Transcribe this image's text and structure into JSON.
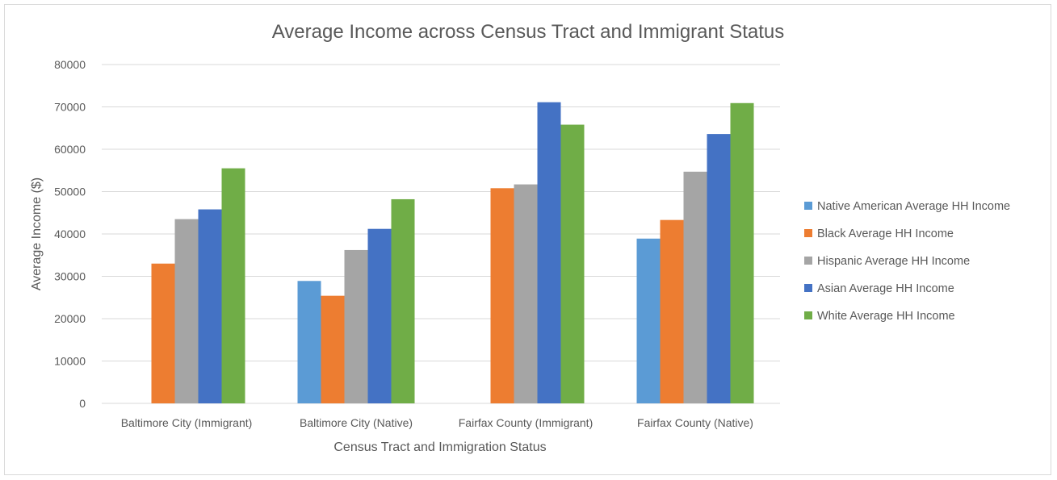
{
  "chart_data": {
    "type": "bar",
    "title": "Average Income across Census Tract and Immigrant Status",
    "xlabel": "Census Tract and Immigration Status",
    "ylabel": "Average Income ($)",
    "ylim": [
      0,
      80000
    ],
    "yticks": [
      0,
      10000,
      20000,
      30000,
      40000,
      50000,
      60000,
      70000,
      80000
    ],
    "grid": true,
    "legend_position": "right",
    "categories": [
      "Baltimore City (Immigrant)",
      "Baltimore City (Native)",
      "Fairfax County (Immigrant)",
      "Fairfax County (Native)"
    ],
    "series": [
      {
        "name": "Native American Average HH Income",
        "color": "#5b9bd5",
        "values": [
          null,
          28900,
          null,
          38900
        ]
      },
      {
        "name": "Black Average HH Income",
        "color": "#ed7d31",
        "values": [
          33000,
          25400,
          50800,
          43300
        ]
      },
      {
        "name": "Hispanic Average HH Income",
        "color": "#a5a5a5",
        "values": [
          43500,
          36200,
          51700,
          54700
        ]
      },
      {
        "name": "Asian Average HH Income",
        "color": "#4472c4",
        "values": [
          45800,
          41200,
          71100,
          63600
        ]
      },
      {
        "name": "White Average HH Income",
        "color": "#70ad47",
        "values": [
          55500,
          48200,
          65800,
          70900
        ]
      }
    ]
  }
}
